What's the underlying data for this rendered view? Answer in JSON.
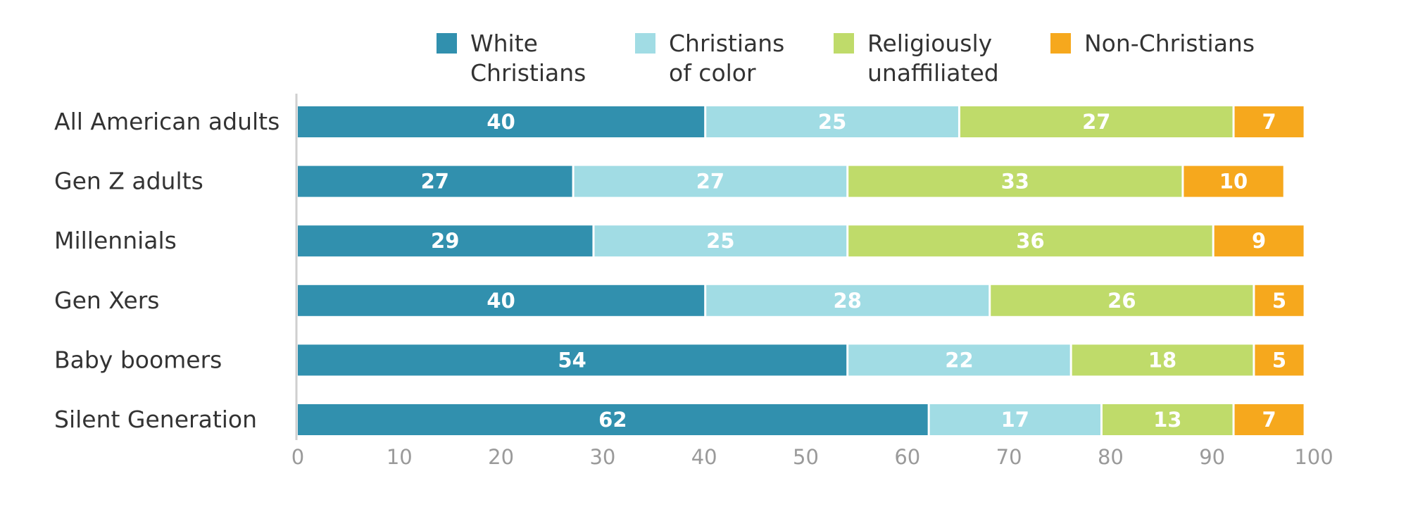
{
  "chart_data": {
    "type": "bar",
    "orientation": "horizontal",
    "stacked": true,
    "categories": [
      "All American adults",
      "Gen Z adults",
      "Millennials",
      "Gen Xers",
      "Baby boomers",
      "Silent Generation"
    ],
    "series": [
      {
        "name": "White Christians",
        "name_lines": [
          "White",
          "Christians"
        ],
        "color": "#3190ae",
        "values": [
          40,
          27,
          29,
          40,
          54,
          62
        ]
      },
      {
        "name": "Christians of color",
        "name_lines": [
          "Christians",
          "of color"
        ],
        "color": "#a1dce4",
        "values": [
          25,
          27,
          25,
          28,
          22,
          17
        ]
      },
      {
        "name": "Religiously unaffiliated",
        "name_lines": [
          "Religiously",
          "unaffiliated"
        ],
        "color": "#bfdb6a",
        "values": [
          27,
          33,
          36,
          26,
          18,
          13
        ]
      },
      {
        "name": "Non-Christians",
        "name_lines": [
          "Non-Christians"
        ],
        "color": "#f6a81d",
        "values": [
          7,
          10,
          9,
          5,
          5,
          7
        ]
      }
    ],
    "xlim": [
      0,
      100
    ],
    "xticks": [
      "0",
      "10",
      "20",
      "30",
      "40",
      "50",
      "60",
      "70",
      "80",
      "90",
      "100"
    ],
    "title": "",
    "xlabel": "",
    "ylabel": "",
    "grid": false,
    "legend_position": "top"
  }
}
